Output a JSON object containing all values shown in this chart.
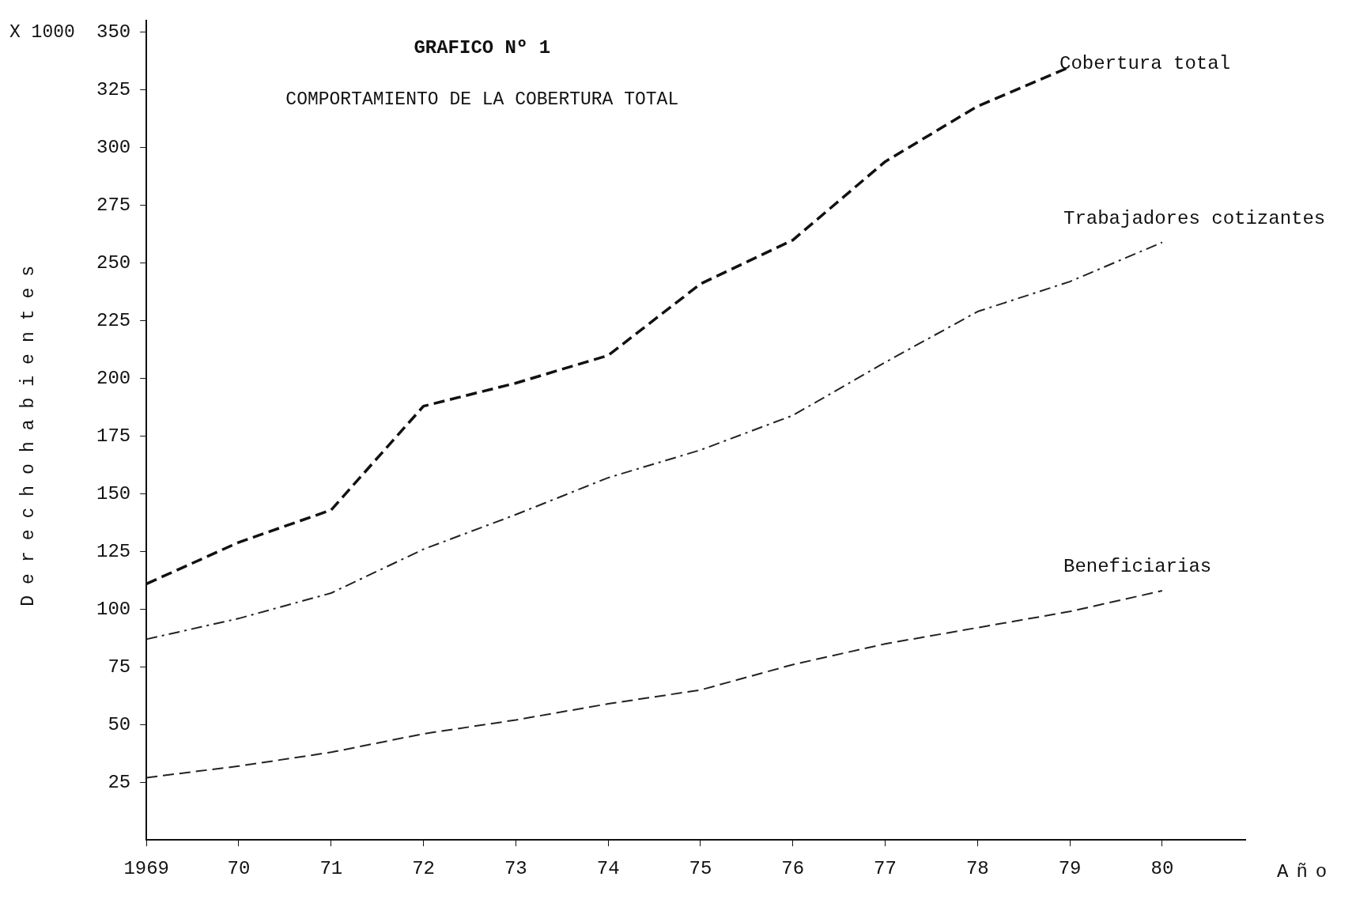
{
  "chart_data": {
    "type": "line",
    "title": "GRAFICO Nº 1",
    "subtitle": "COMPORTAMIENTO DE LA COBERTURA TOTAL",
    "xlabel": "Año",
    "ylabel": "Derechohabientes",
    "annotations": [
      "X 1000"
    ],
    "x": [
      1969,
      1970,
      1971,
      1972,
      1973,
      1974,
      1975,
      1976,
      1977,
      1978,
      1979,
      1980
    ],
    "xlim": [
      1969,
      1980.9
    ],
    "xticks": [
      {
        "value": 1969,
        "label": "1969"
      },
      {
        "value": 1970,
        "label": "70"
      },
      {
        "value": 1971,
        "label": "71"
      },
      {
        "value": 1972,
        "label": "72"
      },
      {
        "value": 1973,
        "label": "73"
      },
      {
        "value": 1974,
        "label": "74"
      },
      {
        "value": 1975,
        "label": "75"
      },
      {
        "value": 1976,
        "label": "76"
      },
      {
        "value": 1977,
        "label": "77"
      },
      {
        "value": 1978,
        "label": "78"
      },
      {
        "value": 1979,
        "label": "79"
      },
      {
        "value": 1980,
        "label": "80"
      }
    ],
    "ylim": [
      0,
      355
    ],
    "yticks": [
      25,
      50,
      75,
      100,
      125,
      150,
      175,
      200,
      225,
      250,
      275,
      300,
      325,
      350
    ],
    "grid": false,
    "legend": false,
    "marker": "none",
    "series": [
      {
        "name": "Cobertura total",
        "color": "#111111",
        "line_style": "dashed",
        "values": [
          111,
          129,
          143,
          188,
          198,
          210,
          241,
          260,
          294,
          318,
          335,
          null
        ]
      },
      {
        "name": "Trabajadores cotizantes",
        "color": "#222222",
        "line_style": "dashdot",
        "values": [
          87,
          96,
          107,
          126,
          141,
          157,
          169,
          184,
          207,
          229,
          242,
          259
        ]
      },
      {
        "name": "Beneficiarias",
        "color": "#222222",
        "line_style": "dashed",
        "values": [
          27,
          32,
          38,
          46,
          52,
          59,
          65,
          76,
          85,
          92,
          99,
          108
        ]
      }
    ]
  }
}
